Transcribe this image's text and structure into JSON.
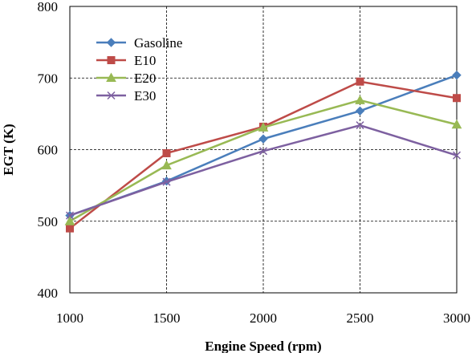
{
  "chart_data": {
    "type": "line",
    "xlabel": "Engine Speed (rpm)",
    "ylabel": "EGT (K)",
    "x": [
      1000,
      1500,
      2000,
      2500,
      3000
    ],
    "xlim": [
      1000,
      3000
    ],
    "ylim": [
      400,
      800
    ],
    "xticks": [
      "1000",
      "1500",
      "2000",
      "2500",
      "3000"
    ],
    "yticks": [
      "400",
      "500",
      "600",
      "700",
      "800"
    ],
    "grid": "dashed major gridlines",
    "legend_position": "top-left inside plot",
    "series": [
      {
        "name": "Gasoline",
        "values": [
          508,
          556,
          615,
          654,
          704
        ],
        "color": "#4a7ebb",
        "marker": "diamond"
      },
      {
        "name": "E10",
        "values": [
          490,
          595,
          632,
          695,
          672
        ],
        "color": "#be4b48",
        "marker": "square"
      },
      {
        "name": "E20",
        "values": [
          500,
          578,
          631,
          669,
          635
        ],
        "color": "#98b954",
        "marker": "triangle"
      },
      {
        "name": "E30",
        "values": [
          508,
          555,
          598,
          634,
          592
        ],
        "color": "#7d60a0",
        "marker": "x"
      }
    ]
  }
}
